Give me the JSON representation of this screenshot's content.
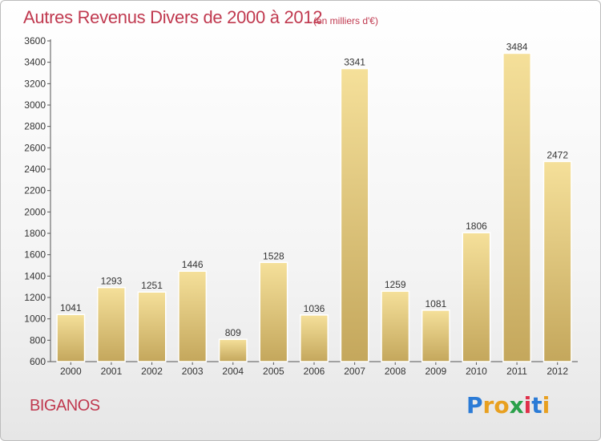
{
  "header": {
    "title": "Autres Revenus Divers de 2000 à 2012",
    "subtitle": "(en milliers d'€)"
  },
  "footer": {
    "commune": "BIGANOS",
    "logo_text": "Proxiti",
    "logo_letters": [
      "P",
      "r",
      "o",
      "x",
      "i",
      "t",
      "i"
    ]
  },
  "colors": {
    "title": "#c0394f",
    "bar_light": "#f5e09a",
    "bar_dark": "#c4a75c",
    "axis": "#555555"
  },
  "chart_data": {
    "type": "bar",
    "title": "Autres Revenus Divers de 2000 à 2012",
    "subtitle": "(en milliers d'€)",
    "xlabel": "",
    "ylabel": "",
    "categories": [
      "2000",
      "2001",
      "2002",
      "2003",
      "2004",
      "2005",
      "2006",
      "2007",
      "2008",
      "2009",
      "2010",
      "2011",
      "2012"
    ],
    "values": [
      1041,
      1293,
      1251,
      1446,
      809,
      1528,
      1036,
      3341,
      1259,
      1081,
      1806,
      3484,
      2472
    ],
    "ylim": [
      600,
      3600
    ],
    "yticks": [
      600,
      800,
      1000,
      1200,
      1400,
      1600,
      1800,
      2000,
      2200,
      2400,
      2600,
      2800,
      3000,
      3200,
      3400,
      3600
    ],
    "grid": false,
    "data_labels": true
  }
}
